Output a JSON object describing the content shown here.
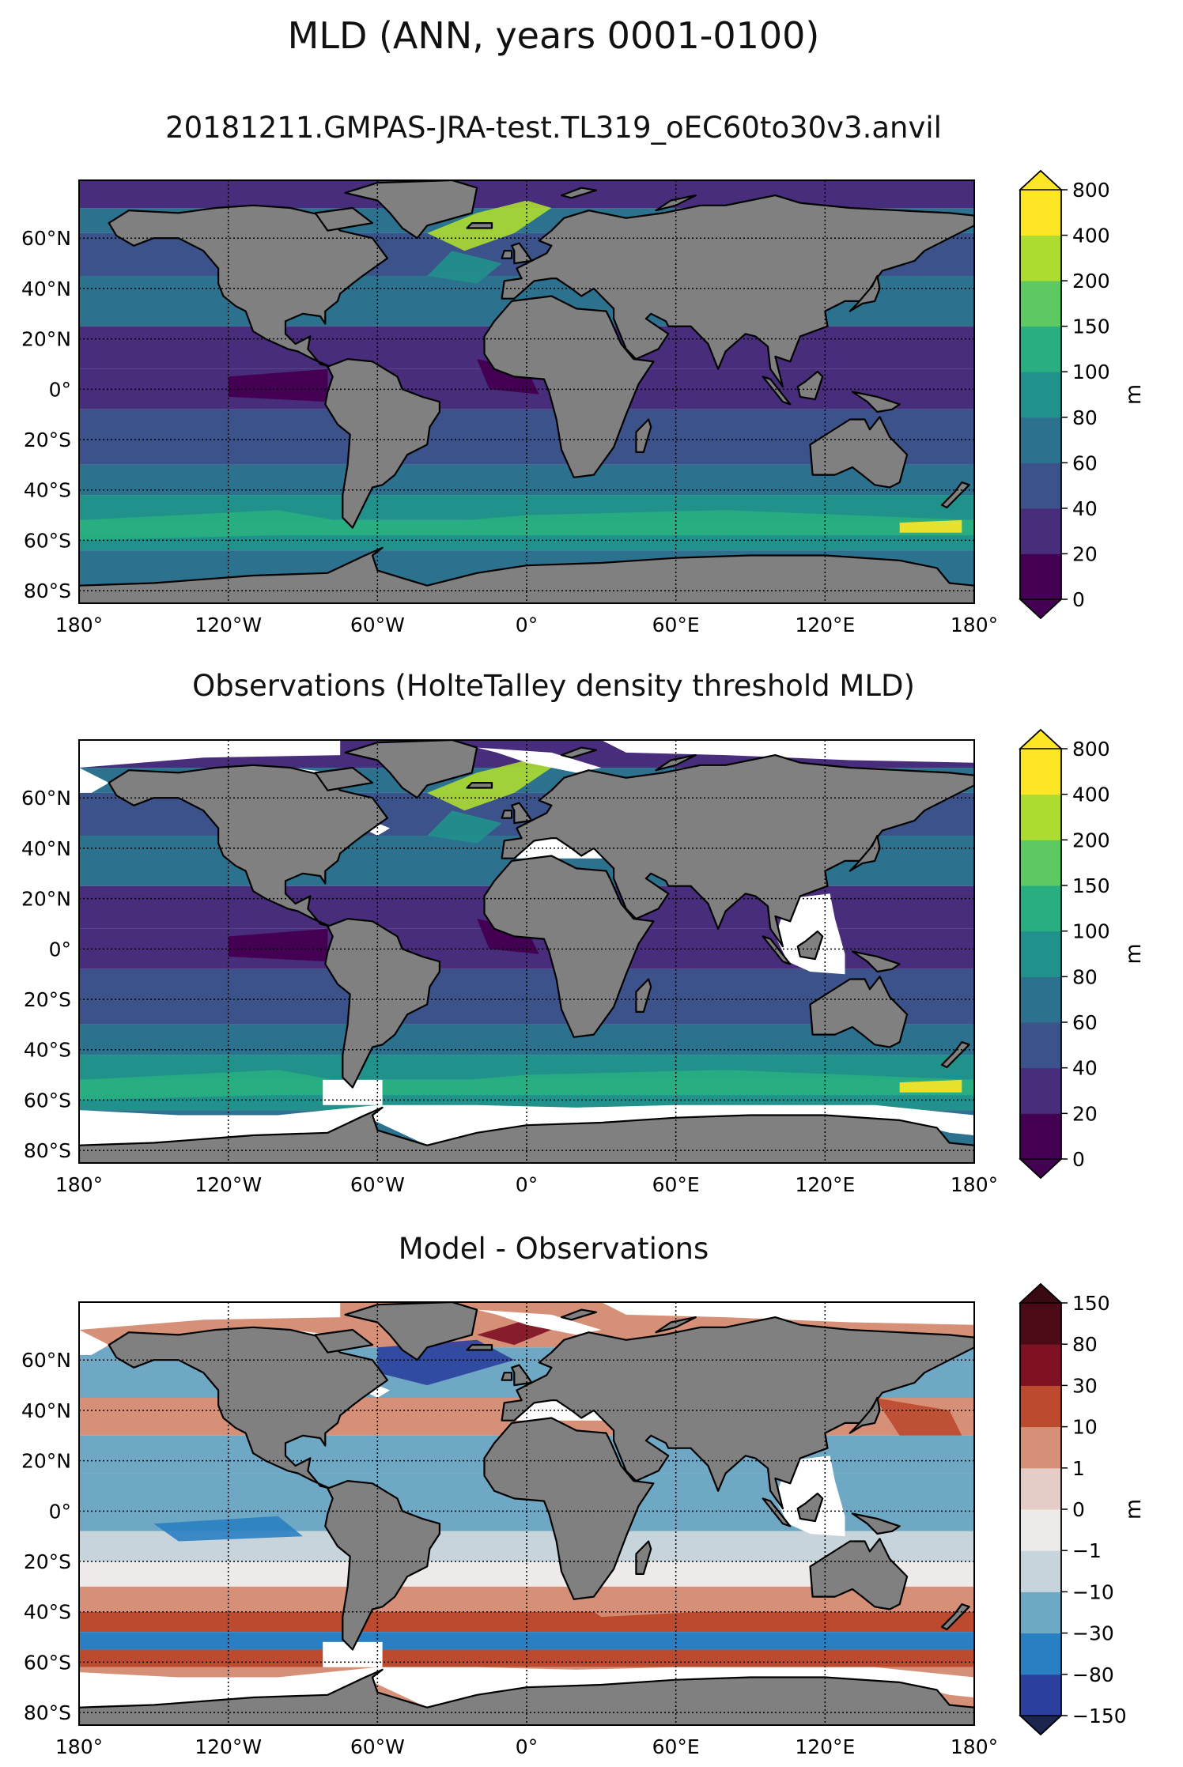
{
  "figure": {
    "title": "MLD (ANN, years 0001-0100)"
  },
  "panels": [
    {
      "title": "20181211.GMPAS-JRA-test.TL319_oEC60to30v3.anvil",
      "colorbar": {
        "unit": "m",
        "levels": [
          "0",
          "20",
          "40",
          "60",
          "80",
          "100",
          "150",
          "200",
          "400",
          "800"
        ],
        "colors": [
          "#440154",
          "#472d7b",
          "#3b528b",
          "#2c728e",
          "#21918c",
          "#28ae80",
          "#5ec962",
          "#addc30",
          "#fde725"
        ],
        "extend_low": "#440154",
        "extend_high": "#fde725"
      }
    },
    {
      "title": "Observations (HolteTalley density threshold MLD)",
      "colorbar": {
        "unit": "m",
        "levels": [
          "0",
          "20",
          "40",
          "60",
          "80",
          "100",
          "150",
          "200",
          "400",
          "800"
        ],
        "colors": [
          "#440154",
          "#472d7b",
          "#3b528b",
          "#2c728e",
          "#21918c",
          "#28ae80",
          "#5ec962",
          "#addc30",
          "#fde725"
        ],
        "extend_low": "#440154",
        "extend_high": "#fde725"
      }
    },
    {
      "title": "Model - Observations",
      "colorbar": {
        "unit": "m",
        "levels": [
          "−150",
          "−80",
          "−30",
          "−10",
          "−1",
          "0",
          "1",
          "10",
          "30",
          "80",
          "150"
        ],
        "colors": [
          "#2a3f9e",
          "#2a7fc2",
          "#6fa8c4",
          "#c7d4dc",
          "#efeaea",
          "#e6ccc6",
          "#d69078",
          "#bb4a2e",
          "#7e1124",
          "#4a0b17"
        ],
        "extend_low": "#1b2550",
        "extend_high": "#3a0a12"
      }
    }
  ],
  "axes": {
    "lon_ticks": [
      "180°",
      "120°W",
      "60°W",
      "0°",
      "60°E",
      "120°E",
      "180°"
    ],
    "lat_ticks": [
      "60°N",
      "40°N",
      "20°N",
      "0°",
      "20°S",
      "40°S",
      "60°S",
      "80°S"
    ]
  },
  "colors": {
    "land": "#808080",
    "coast": "#000000",
    "missing": "#ffffff"
  }
}
